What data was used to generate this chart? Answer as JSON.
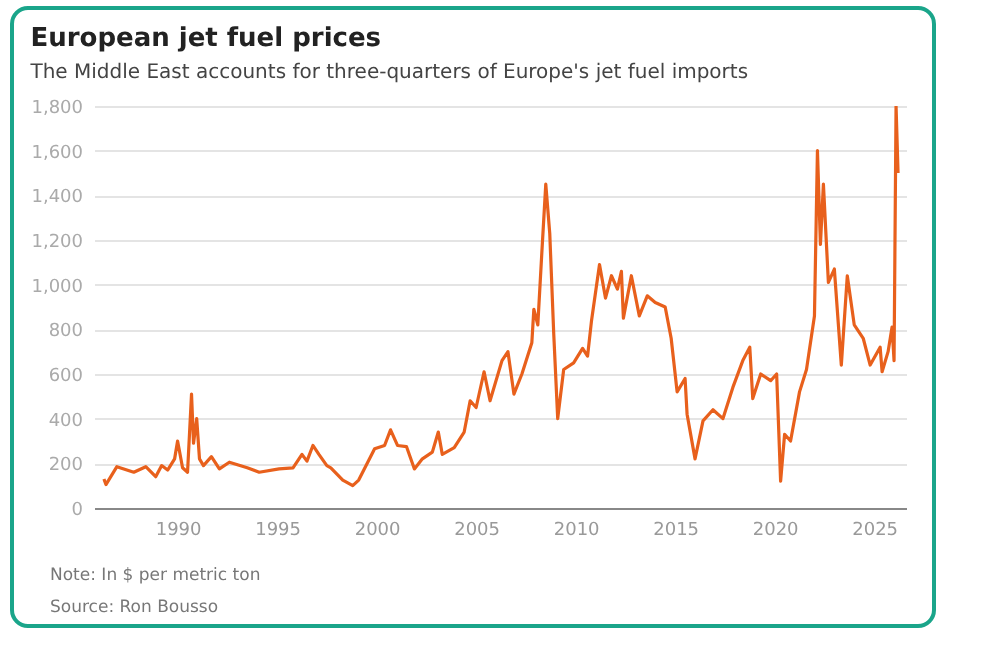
{
  "chart_data": {
    "type": "line",
    "title": "European jet fuel prices",
    "subtitle": "The Middle East accounts for three-quarters of Europe's jet fuel imports",
    "annotations": [
      "Note: In $ per metric ton",
      "Source: Ron Bousso"
    ],
    "x": [
      1986.3,
      1986.4,
      1986.95,
      1987.8,
      1988.4,
      1988.9,
      1989.2,
      1989.5,
      1989.85,
      1990.0,
      1990.25,
      1990.5,
      1990.7,
      1990.8,
      1990.96,
      1991.1,
      1991.3,
      1991.7,
      1992.1,
      1992.6,
      1993.5,
      1994.1,
      1995.1,
      1995.8,
      1996.25,
      1996.5,
      1996.8,
      1997.1,
      1997.5,
      1997.7,
      1998.3,
      1998.8,
      1999.1,
      1999.9,
      2000.4,
      2000.7,
      2001.05,
      2001.5,
      2001.9,
      2002.3,
      2002.8,
      2003.1,
      2003.3,
      2003.9,
      2004.4,
      2004.7,
      2005.0,
      2005.4,
      2005.7,
      2006.3,
      2006.6,
      2006.9,
      2007.3,
      2007.8,
      2007.9,
      2008.1,
      2008.3,
      2008.5,
      2008.7,
      2008.9,
      2009.1,
      2009.4,
      2009.9,
      2010.35,
      2010.6,
      2010.8,
      2011.2,
      2011.5,
      2011.8,
      2012.1,
      2012.3,
      2012.4,
      2012.8,
      2013.2,
      2013.6,
      2014.0,
      2014.5,
      2014.8,
      2015.1,
      2015.5,
      2015.6,
      2016.0,
      2016.4,
      2016.9,
      2017.4,
      2017.9,
      2018.4,
      2018.75,
      2018.9,
      2019.3,
      2019.8,
      2020.1,
      2020.3,
      2020.5,
      2020.8,
      2021.25,
      2021.6,
      2021.8,
      2022.0,
      2022.15,
      2022.3,
      2022.45,
      2022.7,
      2023.0,
      2023.35,
      2023.65,
      2024.0,
      2024.45,
      2024.8,
      2025.3,
      2025.4,
      2025.7,
      2025.9,
      2026.0,
      2026.1,
      2026.2
    ],
    "series": [
      {
        "color": "#e8601c",
        "values": [
          130,
          105,
          185,
          160,
          185,
          140,
          190,
          170,
          220,
          300,
          180,
          160,
          510,
          290,
          400,
          220,
          190,
          230,
          175,
          205,
          180,
          160,
          175,
          180,
          240,
          210,
          280,
          240,
          190,
          180,
          125,
          100,
          125,
          265,
          280,
          350,
          280,
          275,
          175,
          220,
          250,
          340,
          240,
          270,
          340,
          480,
          450,
          610,
          480,
          660,
          700,
          510,
          600,
          740,
          890,
          820,
          1140,
          1450,
          1230,
          780,
          400,
          620,
          650,
          715,
          680,
          840,
          1090,
          940,
          1040,
          980,
          1060,
          850,
          1040,
          860,
          950,
          920,
          900,
          760,
          520,
          580,
          420,
          220,
          390,
          440,
          400,
          540,
          660,
          720,
          490,
          600,
          570,
          600,
          120,
          330,
          300,
          520,
          620,
          740,
          860,
          1600,
          1180,
          1450,
          1010,
          1070,
          640,
          1040,
          820,
          760,
          640,
          720,
          610,
          700,
          810,
          660,
          1800,
          1500
        ]
      }
    ],
    "xlim": [
      1985.8,
      2026.6
    ],
    "xticks": [
      1990,
      1995,
      2000,
      2005,
      2010,
      2015,
      2020,
      2025
    ],
    "ylim": [
      0,
      1800
    ],
    "yticks": [
      0,
      200,
      400,
      600,
      800,
      {
        "value": 1000,
        "label": "1,000"
      },
      {
        "value": 1200,
        "label": "1,200"
      },
      {
        "value": 1400,
        "label": "1,400"
      },
      {
        "value": 1600,
        "label": "1,600"
      },
      {
        "value": 1800,
        "label": "1,800"
      }
    ],
    "grid": "y"
  }
}
